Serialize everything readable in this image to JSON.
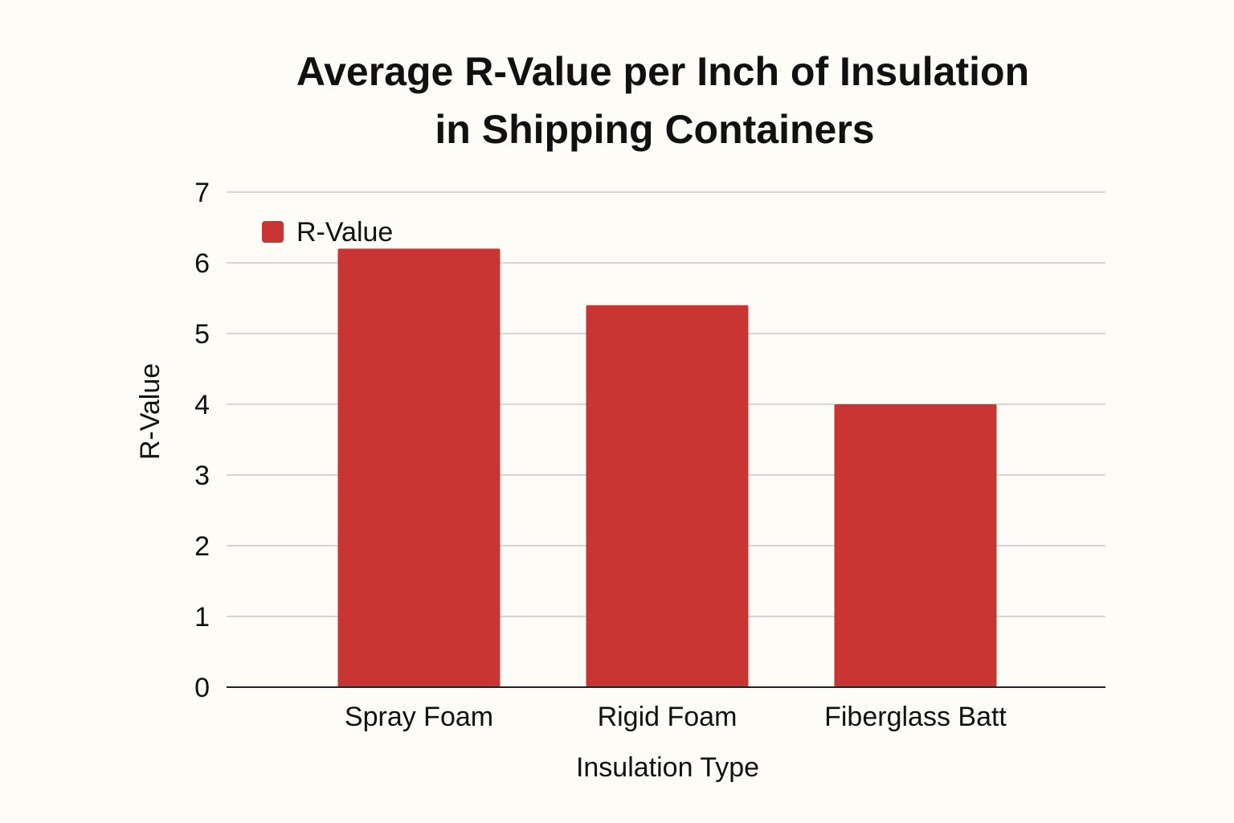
{
  "chart_data": {
    "type": "bar",
    "title_lines": [
      "Average R-Value per Inch of Insulation",
      "in Shipping Containers"
    ],
    "categories": [
      "Spray Foam",
      "Rigid Foam",
      "Fiberglass Batt"
    ],
    "series": [
      {
        "name": "R-Value",
        "values": [
          6.2,
          5.4,
          4.0
        ]
      }
    ],
    "xlabel": "Insulation Type",
    "ylabel": "R-Value",
    "ylim": [
      0,
      7
    ],
    "yticks": [
      "0",
      "1",
      "2",
      "3",
      "4",
      "5",
      "6",
      "7"
    ],
    "grid": true,
    "legend_position": "top-left"
  },
  "colors": {
    "bar": "#c93532",
    "grid": "#c8c8c8",
    "axis": "#222222",
    "background": "#fdfcf7"
  }
}
